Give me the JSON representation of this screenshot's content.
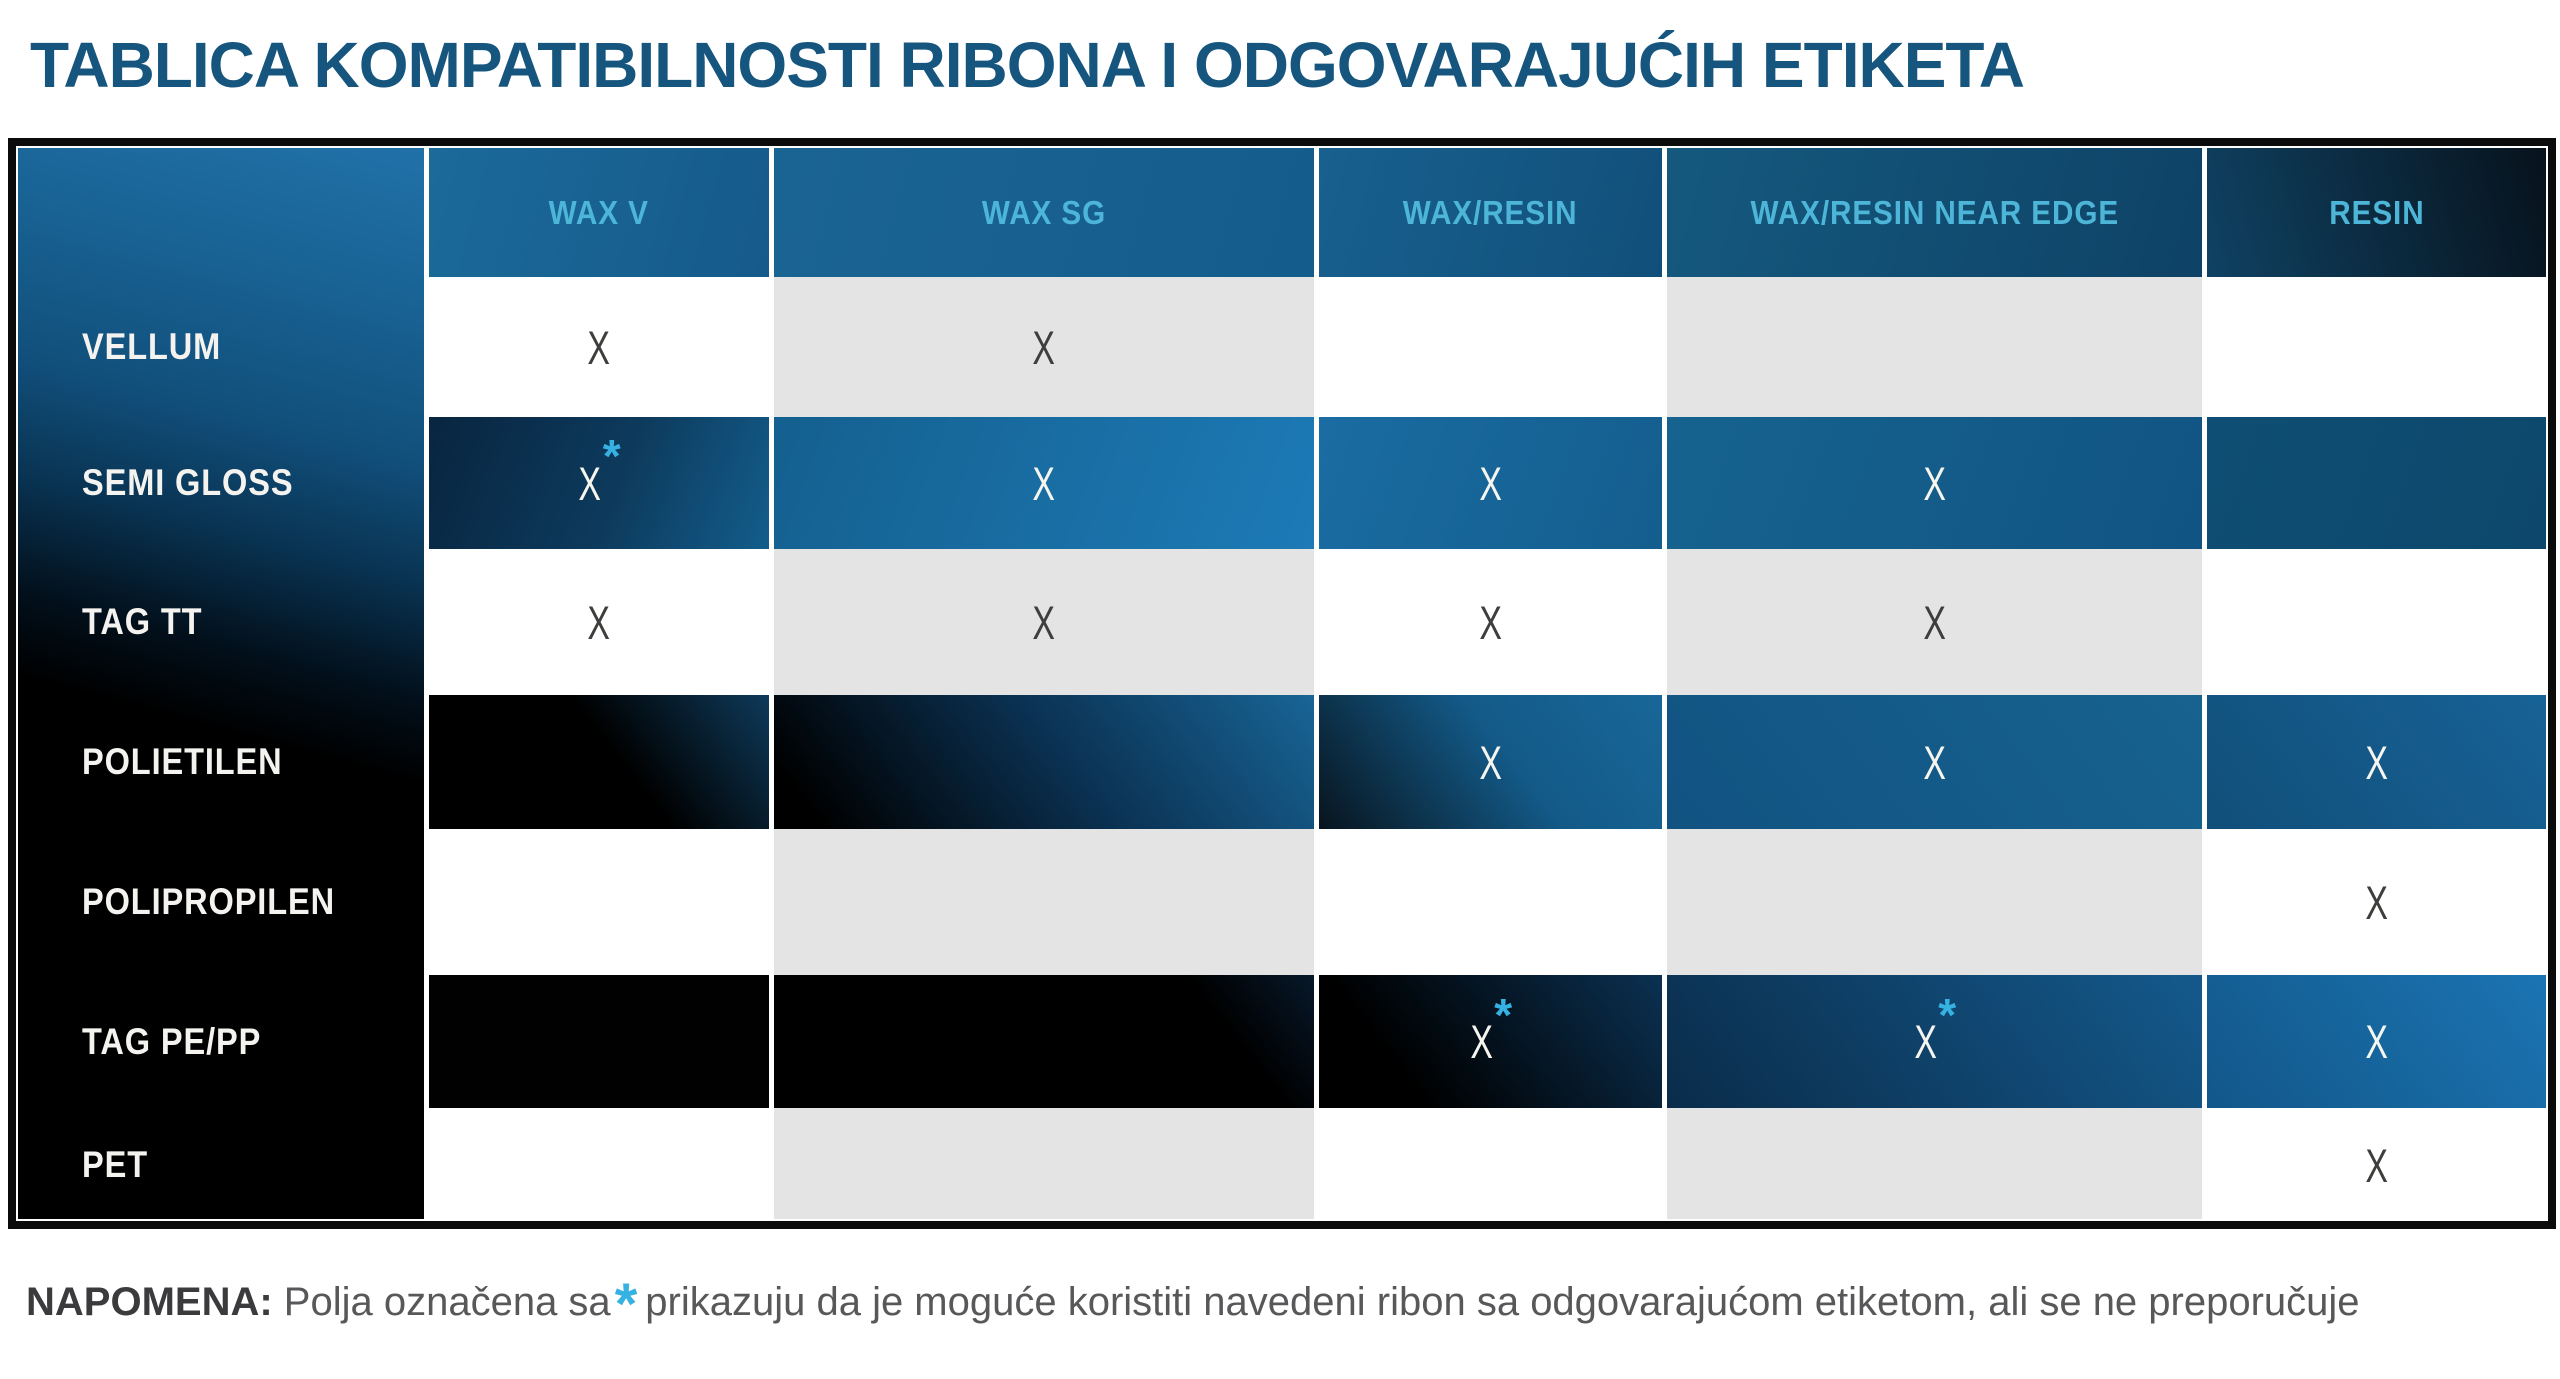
{
  "title": "TABLICA KOMPATIBILNOSTI RIBONA I ODGOVARAJUĆIH ETIKETA",
  "table": {
    "star_symbol": "*",
    "columns": [
      {
        "label": "WAX V",
        "stripe": "#ffffff"
      },
      {
        "label": "WAX SG",
        "stripe": "#e4e4e4"
      },
      {
        "label": "WAX/RESIN",
        "stripe": "#ffffff"
      },
      {
        "label": "WAX/RESIN NEAR EDGE",
        "stripe": "#e4e4e4"
      },
      {
        "label": "RESIN",
        "stripe": "#ffffff"
      }
    ],
    "rows": [
      {
        "label": "VELLUM",
        "cells": [
          {
            "mark": "X"
          },
          {
            "mark": "X"
          },
          {},
          {},
          {}
        ]
      },
      {
        "label": "SEMI GLOSS",
        "cells": [
          {
            "mark": "X",
            "star": true,
            "tone": "semigloss-0"
          },
          {
            "mark": "X",
            "tone": "semigloss-1"
          },
          {
            "mark": "X",
            "tone": "semigloss-2"
          },
          {
            "mark": "X",
            "tone": "semigloss-3"
          },
          {
            "tone": "semigloss-4"
          }
        ]
      },
      {
        "label": "TAG TT",
        "cells": [
          {
            "mark": "X"
          },
          {
            "mark": "X"
          },
          {
            "mark": "X"
          },
          {
            "mark": "X"
          },
          {}
        ]
      },
      {
        "label": "POLIETILEN",
        "cells": [
          {
            "tone": "poli-0"
          },
          {
            "tone": "poli-1"
          },
          {
            "mark": "X",
            "tone": "poli-2"
          },
          {
            "mark": "X",
            "tone": "poli-3"
          },
          {
            "mark": "X",
            "tone": "poli-4"
          }
        ]
      },
      {
        "label": "POLIPROPILEN",
        "cells": [
          {},
          {},
          {},
          {},
          {
            "mark": "X"
          }
        ]
      },
      {
        "label": "TAG PE/PP",
        "cells": [
          {
            "tone": "tag-0"
          },
          {
            "tone": "tag-1"
          },
          {
            "mark": "X",
            "star": true,
            "tone": "tag-2"
          },
          {
            "mark": "X",
            "star": true,
            "tone": "tag-3"
          },
          {
            "mark": "X",
            "tone": "tag-4"
          }
        ]
      },
      {
        "label": "PET",
        "cells": [
          {},
          {},
          {},
          {},
          {
            "mark": "X"
          }
        ]
      }
    ]
  },
  "note": {
    "label": "NAPOMENA:",
    "before_star": " Polja označena sa",
    "star": "*",
    "after_star": "prikazuju da je moguće koristiti navedeni ribon sa odgovarajućom etiketom, ali se ne preporučuje"
  },
  "colors": {
    "title_blue": "#16567e",
    "header_text_cyan": "#4db6d8",
    "asterisk_cyan": "#35b2e2",
    "column_stripe_gray": "#e4e4e4",
    "mark_dark": "#3f3e3c",
    "mark_light": "#f6f5ee",
    "table_border_black": "#0b0b0b"
  }
}
